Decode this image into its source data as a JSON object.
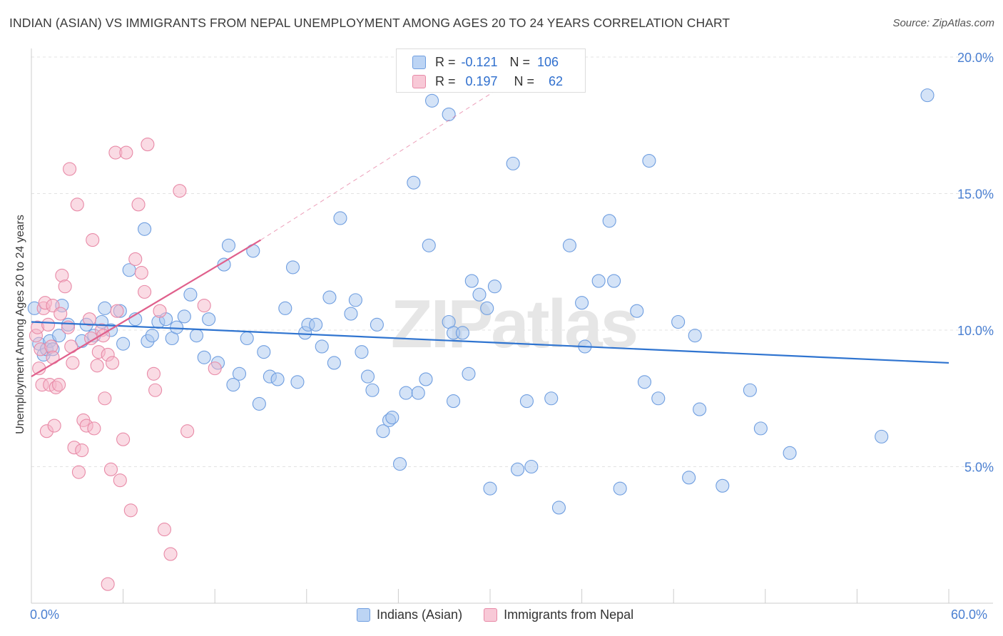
{
  "title": "INDIAN (ASIAN) VS IMMIGRANTS FROM NEPAL UNEMPLOYMENT AMONG AGES 20 TO 24 YEARS CORRELATION CHART",
  "source": "Source: ZipAtlas.com",
  "watermark": "ZIPatlas",
  "stats": [
    {
      "r_label": "R =",
      "r_value": "-0.121",
      "n_label": "N =",
      "n_value": "106"
    },
    {
      "r_label": "R =",
      "r_value": "0.197",
      "n_label": "N =",
      "n_value": "62"
    }
  ],
  "colors": {
    "blue_fill": "#a9c8f0",
    "blue_edge": "#6f9ee0",
    "blue_line": "#2f74d0",
    "pink_fill": "#f5b8ca",
    "pink_edge": "#e88aa7",
    "pink_line": "#e0608c",
    "tick_text": "#4a7fd1",
    "grid": "#e3e3e3"
  },
  "chart_data": {
    "type": "scatter",
    "title": "INDIAN (ASIAN) VS IMMIGRANTS FROM NEPAL UNEMPLOYMENT AMONG AGES 20 TO 24 YEARS CORRELATION CHART",
    "xlabel": "",
    "ylabel": "Unemployment Among Ages 20 to 24 years",
    "xlim": [
      0,
      60
    ],
    "ylim": [
      0,
      20
    ],
    "x_tick_labels": [
      "0.0%",
      "60.0%"
    ],
    "y_ticks": [
      5,
      10,
      15,
      20
    ],
    "y_tick_labels": [
      "5.0%",
      "10.0%",
      "15.0%",
      "20.0%"
    ],
    "grid": "horizontal dashed",
    "legend_position": "bottom-center",
    "series": [
      {
        "name": "Indians (Asian)",
        "trend": {
          "x": [
            0,
            60
          ],
          "y": [
            10.3,
            8.8
          ]
        },
        "points": [
          [
            0.2,
            10.8
          ],
          [
            0.5,
            9.5
          ],
          [
            0.8,
            9.1
          ],
          [
            1.0,
            9.3
          ],
          [
            1.2,
            9.6
          ],
          [
            1.4,
            9.3
          ],
          [
            1.8,
            9.8
          ],
          [
            2.0,
            10.9
          ],
          [
            2.4,
            10.2
          ],
          [
            3.3,
            9.6
          ],
          [
            3.6,
            10.2
          ],
          [
            4.1,
            9.8
          ],
          [
            4.6,
            10.3
          ],
          [
            4.8,
            10.8
          ],
          [
            5.2,
            10.0
          ],
          [
            5.8,
            10.7
          ],
          [
            6.0,
            9.5
          ],
          [
            6.4,
            12.2
          ],
          [
            6.8,
            10.4
          ],
          [
            7.4,
            13.7
          ],
          [
            7.6,
            9.6
          ],
          [
            7.9,
            9.8
          ],
          [
            8.3,
            10.3
          ],
          [
            8.8,
            10.4
          ],
          [
            9.2,
            9.7
          ],
          [
            9.5,
            10.1
          ],
          [
            10.0,
            10.5
          ],
          [
            10.4,
            11.3
          ],
          [
            10.8,
            9.8
          ],
          [
            11.3,
            9.0
          ],
          [
            11.6,
            10.4
          ],
          [
            12.2,
            8.8
          ],
          [
            12.6,
            12.4
          ],
          [
            12.9,
            13.1
          ],
          [
            13.2,
            8.0
          ],
          [
            13.6,
            8.4
          ],
          [
            14.1,
            9.7
          ],
          [
            14.5,
            12.9
          ],
          [
            14.9,
            7.3
          ],
          [
            15.2,
            9.2
          ],
          [
            15.6,
            8.3
          ],
          [
            16.1,
            8.2
          ],
          [
            16.6,
            10.8
          ],
          [
            17.1,
            12.3
          ],
          [
            17.4,
            8.1
          ],
          [
            17.9,
            9.9
          ],
          [
            18.1,
            10.2
          ],
          [
            18.6,
            10.2
          ],
          [
            19.0,
            9.4
          ],
          [
            19.5,
            11.2
          ],
          [
            19.8,
            8.8
          ],
          [
            20.2,
            14.1
          ],
          [
            20.9,
            10.6
          ],
          [
            21.2,
            11.1
          ],
          [
            21.6,
            9.2
          ],
          [
            22.0,
            8.3
          ],
          [
            22.3,
            7.8
          ],
          [
            22.6,
            10.2
          ],
          [
            23.0,
            6.3
          ],
          [
            23.4,
            6.7
          ],
          [
            23.6,
            6.8
          ],
          [
            24.1,
            5.1
          ],
          [
            24.5,
            7.7
          ],
          [
            25.0,
            15.4
          ],
          [
            25.3,
            7.7
          ],
          [
            25.8,
            8.2
          ],
          [
            26.0,
            13.1
          ],
          [
            26.2,
            18.4
          ],
          [
            27.3,
            17.9
          ],
          [
            27.6,
            7.4
          ],
          [
            27.3,
            10.3
          ],
          [
            27.6,
            9.9
          ],
          [
            28.2,
            9.9
          ],
          [
            28.6,
            8.4
          ],
          [
            28.8,
            11.8
          ],
          [
            29.3,
            11.3
          ],
          [
            29.8,
            10.8
          ],
          [
            30.0,
            4.2
          ],
          [
            30.3,
            11.6
          ],
          [
            31.5,
            16.1
          ],
          [
            31.8,
            4.9
          ],
          [
            32.4,
            7.4
          ],
          [
            32.7,
            5.0
          ],
          [
            34.0,
            7.5
          ],
          [
            34.5,
            3.5
          ],
          [
            35.2,
            13.1
          ],
          [
            36.0,
            11.0
          ],
          [
            36.2,
            9.4
          ],
          [
            37.1,
            11.8
          ],
          [
            37.8,
            14.0
          ],
          [
            38.1,
            11.8
          ],
          [
            38.5,
            4.2
          ],
          [
            39.6,
            10.7
          ],
          [
            40.1,
            8.1
          ],
          [
            40.4,
            16.2
          ],
          [
            41.0,
            7.5
          ],
          [
            42.3,
            10.3
          ],
          [
            43.0,
            4.6
          ],
          [
            43.4,
            9.8
          ],
          [
            43.7,
            7.1
          ],
          [
            45.2,
            4.3
          ],
          [
            47.0,
            7.8
          ],
          [
            47.7,
            6.4
          ],
          [
            49.6,
            5.5
          ],
          [
            55.6,
            6.1
          ],
          [
            58.6,
            18.6
          ]
        ]
      },
      {
        "name": "Immigrants from Nepal",
        "trend": {
          "x": [
            0,
            15
          ],
          "y": [
            8.3,
            13.3
          ]
        },
        "trend_extended": {
          "x": [
            15,
            31
          ],
          "y": [
            13.3,
            19.0
          ]
        },
        "points": [
          [
            0.3,
            9.8
          ],
          [
            0.4,
            10.1
          ],
          [
            0.5,
            8.6
          ],
          [
            0.6,
            9.3
          ],
          [
            0.7,
            8.0
          ],
          [
            0.8,
            10.8
          ],
          [
            0.9,
            11.0
          ],
          [
            1.0,
            6.3
          ],
          [
            1.1,
            10.2
          ],
          [
            1.2,
            8.0
          ],
          [
            1.3,
            9.4
          ],
          [
            1.4,
            10.9
          ],
          [
            1.4,
            9.0
          ],
          [
            1.5,
            6.5
          ],
          [
            1.6,
            7.9
          ],
          [
            1.8,
            8.0
          ],
          [
            1.9,
            10.6
          ],
          [
            2.0,
            12.0
          ],
          [
            2.2,
            11.6
          ],
          [
            2.4,
            10.1
          ],
          [
            2.5,
            15.9
          ],
          [
            2.6,
            9.4
          ],
          [
            2.7,
            8.8
          ],
          [
            2.8,
            5.7
          ],
          [
            3.0,
            14.6
          ],
          [
            3.1,
            4.8
          ],
          [
            3.3,
            5.6
          ],
          [
            3.4,
            6.7
          ],
          [
            3.6,
            6.5
          ],
          [
            3.8,
            10.4
          ],
          [
            3.9,
            9.7
          ],
          [
            4.0,
            13.3
          ],
          [
            4.1,
            6.4
          ],
          [
            4.3,
            8.7
          ],
          [
            4.4,
            9.2
          ],
          [
            4.6,
            10.0
          ],
          [
            4.7,
            9.8
          ],
          [
            4.8,
            7.5
          ],
          [
            5.0,
            0.7
          ],
          [
            5.0,
            9.1
          ],
          [
            5.2,
            4.9
          ],
          [
            5.3,
            8.8
          ],
          [
            5.5,
            16.5
          ],
          [
            5.6,
            10.7
          ],
          [
            5.8,
            4.5
          ],
          [
            6.0,
            6.0
          ],
          [
            6.2,
            16.5
          ],
          [
            6.5,
            3.4
          ],
          [
            6.8,
            12.6
          ],
          [
            7.0,
            14.6
          ],
          [
            7.2,
            12.1
          ],
          [
            7.4,
            11.4
          ],
          [
            7.6,
            16.8
          ],
          [
            8.0,
            8.4
          ],
          [
            8.1,
            7.8
          ],
          [
            8.4,
            10.7
          ],
          [
            8.7,
            2.7
          ],
          [
            9.1,
            1.8
          ],
          [
            9.7,
            15.1
          ],
          [
            10.2,
            6.3
          ],
          [
            11.3,
            10.9
          ],
          [
            12.0,
            8.6
          ]
        ]
      }
    ]
  }
}
